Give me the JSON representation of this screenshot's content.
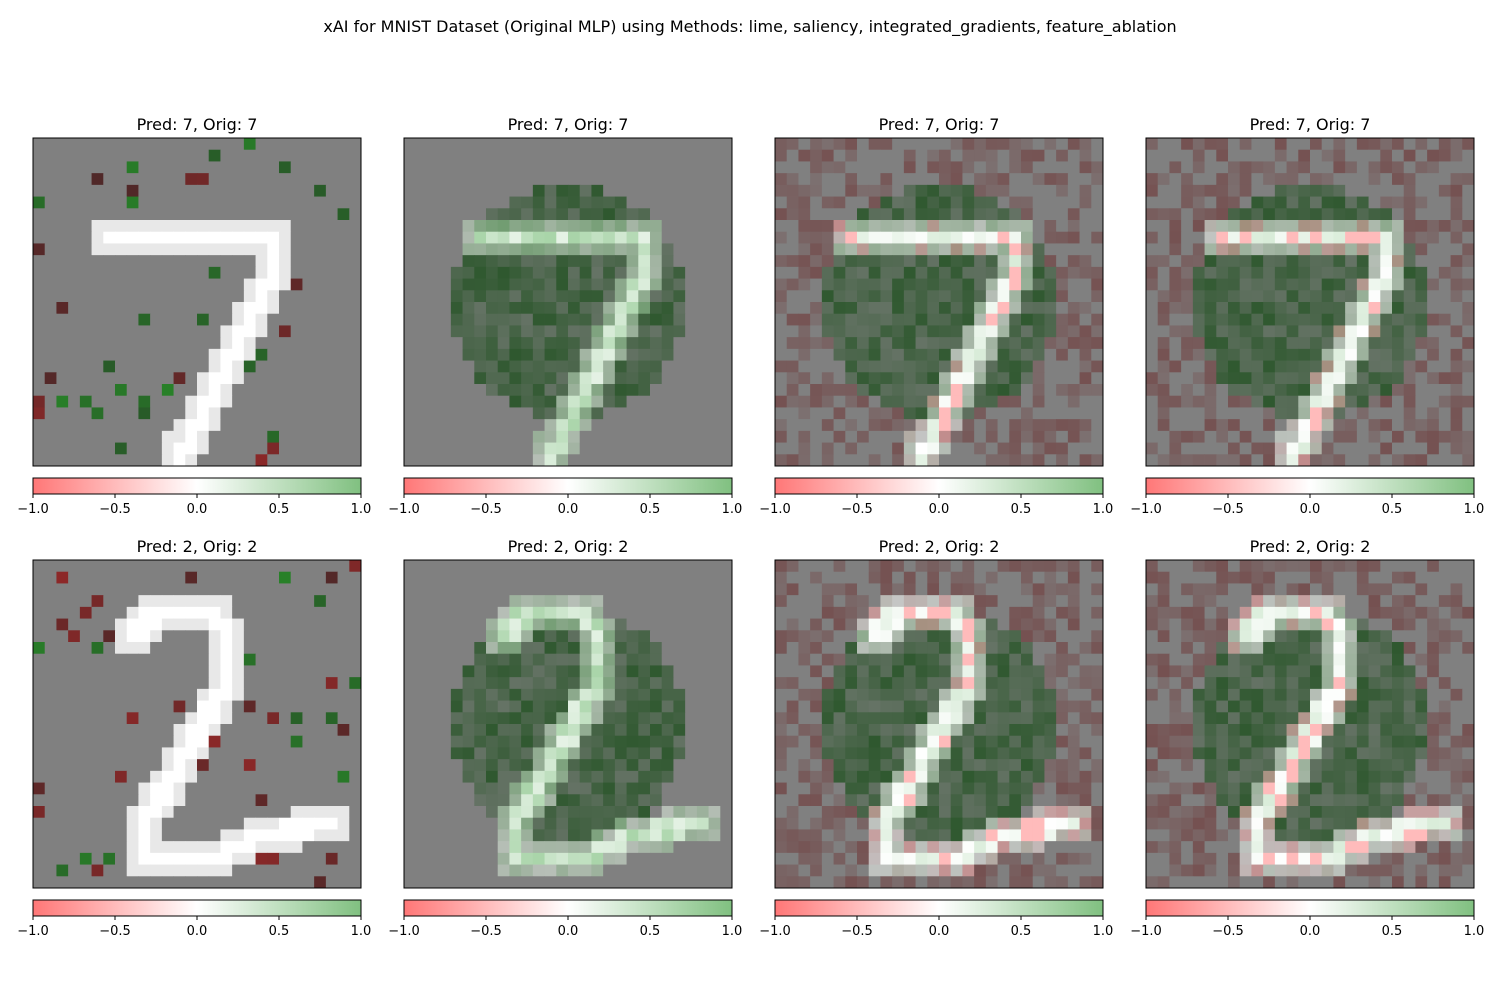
{
  "suptitle": "xAI for MNIST Dataset (Original MLP) using Methods: lime, saliency, integrated_gradients, feature_ablation",
  "colors": {
    "negative": "#ff7777",
    "neutral": "#ffffff",
    "positive": "#80c080",
    "panel_background": "#808080"
  },
  "chart_data": [
    {
      "type": "heatmap",
      "row": 0,
      "method": "lime",
      "title": "Pred: 7, Orig: 7",
      "digit": 7,
      "colorbar": {
        "range": [
          -1.0,
          1.0
        ],
        "ticks": [
          "−1.0",
          "−0.5",
          "0.0",
          "0.5",
          "1.0"
        ]
      }
    },
    {
      "type": "heatmap",
      "row": 0,
      "method": "saliency",
      "title": "Pred: 7, Orig: 7",
      "digit": 7,
      "colorbar": {
        "range": [
          -1.0,
          1.0
        ],
        "ticks": [
          "−1.0",
          "−0.5",
          "0.0",
          "0.5",
          "1.0"
        ]
      }
    },
    {
      "type": "heatmap",
      "row": 0,
      "method": "integrated_gradients",
      "title": "Pred: 7, Orig: 7",
      "digit": 7,
      "colorbar": {
        "range": [
          -1.0,
          1.0
        ],
        "ticks": [
          "−1.0",
          "−0.5",
          "0.0",
          "0.5",
          "1.0"
        ]
      }
    },
    {
      "type": "heatmap",
      "row": 0,
      "method": "feature_ablation",
      "title": "Pred: 7, Orig: 7",
      "digit": 7,
      "colorbar": {
        "range": [
          -1.0,
          1.0
        ],
        "ticks": [
          "−1.0",
          "−0.5",
          "0.0",
          "0.5",
          "1.0"
        ]
      }
    },
    {
      "type": "heatmap",
      "row": 1,
      "method": "lime",
      "title": "Pred: 2, Orig: 2",
      "digit": 2,
      "colorbar": {
        "range": [
          -1.0,
          1.0
        ],
        "ticks": [
          "−1.0",
          "−0.5",
          "0.0",
          "0.5",
          "1.0"
        ]
      }
    },
    {
      "type": "heatmap",
      "row": 1,
      "method": "saliency",
      "title": "Pred: 2, Orig: 2",
      "digit": 2,
      "colorbar": {
        "range": [
          -1.0,
          1.0
        ],
        "ticks": [
          "−1.0",
          "−0.5",
          "0.0",
          "0.5",
          "1.0"
        ]
      }
    },
    {
      "type": "heatmap",
      "row": 1,
      "method": "integrated_gradients",
      "title": "Pred: 2, Orig: 2",
      "digit": 2,
      "colorbar": {
        "range": [
          -1.0,
          1.0
        ],
        "ticks": [
          "−1.0",
          "−0.5",
          "0.0",
          "0.5",
          "1.0"
        ]
      }
    },
    {
      "type": "heatmap",
      "row": 1,
      "method": "feature_ablation",
      "title": "Pred: 2, Orig: 2",
      "digit": 2,
      "colorbar": {
        "range": [
          -1.0,
          1.0
        ],
        "ticks": [
          "−1.0",
          "−0.5",
          "0.0",
          "0.5",
          "1.0"
        ]
      }
    }
  ]
}
